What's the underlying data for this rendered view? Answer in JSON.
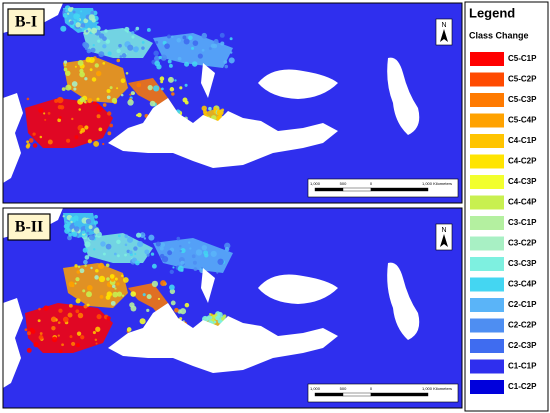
{
  "panels": [
    {
      "label": "B-I",
      "north": "N",
      "scale_labels": [
        "1,000",
        "500",
        "0",
        "1,000 Kilometers"
      ]
    },
    {
      "label": "B-II",
      "north": "N",
      "scale_labels": [
        "1,000",
        "500",
        "0",
        "1,000 Kilometers"
      ]
    }
  ],
  "legend": {
    "title": "Legend",
    "subtitle": "Class Change",
    "items": [
      {
        "label": "C5-C1P",
        "color": "#ff0000"
      },
      {
        "label": "C5-C2P",
        "color": "#ff4a00"
      },
      {
        "label": "C5-C3P",
        "color": "#ff7a00"
      },
      {
        "label": "C5-C4P",
        "color": "#ffa200"
      },
      {
        "label": "C4-C1P",
        "color": "#ffc400"
      },
      {
        "label": "C4-C2P",
        "color": "#ffe400"
      },
      {
        "label": "C4-C3P",
        "color": "#f2ff2e"
      },
      {
        "label": "C4-C4P",
        "color": "#c8f050"
      },
      {
        "label": "C3-C1P",
        "color": "#b4f0a0"
      },
      {
        "label": "C3-C2P",
        "color": "#a8f0c4"
      },
      {
        "label": "C3-C3P",
        "color": "#7ef0e0"
      },
      {
        "label": "C3-C4P",
        "color": "#44d6f2"
      },
      {
        "label": "C2-C1P",
        "color": "#5ab4f8"
      },
      {
        "label": "C2-C2P",
        "color": "#4e8ef2"
      },
      {
        "label": "C2-C3P",
        "color": "#3f6cf0"
      },
      {
        "label": "C1-C1P",
        "color": "#2f2fee"
      },
      {
        "label": "C1-C2P",
        "color": "#0000dc"
      }
    ]
  }
}
